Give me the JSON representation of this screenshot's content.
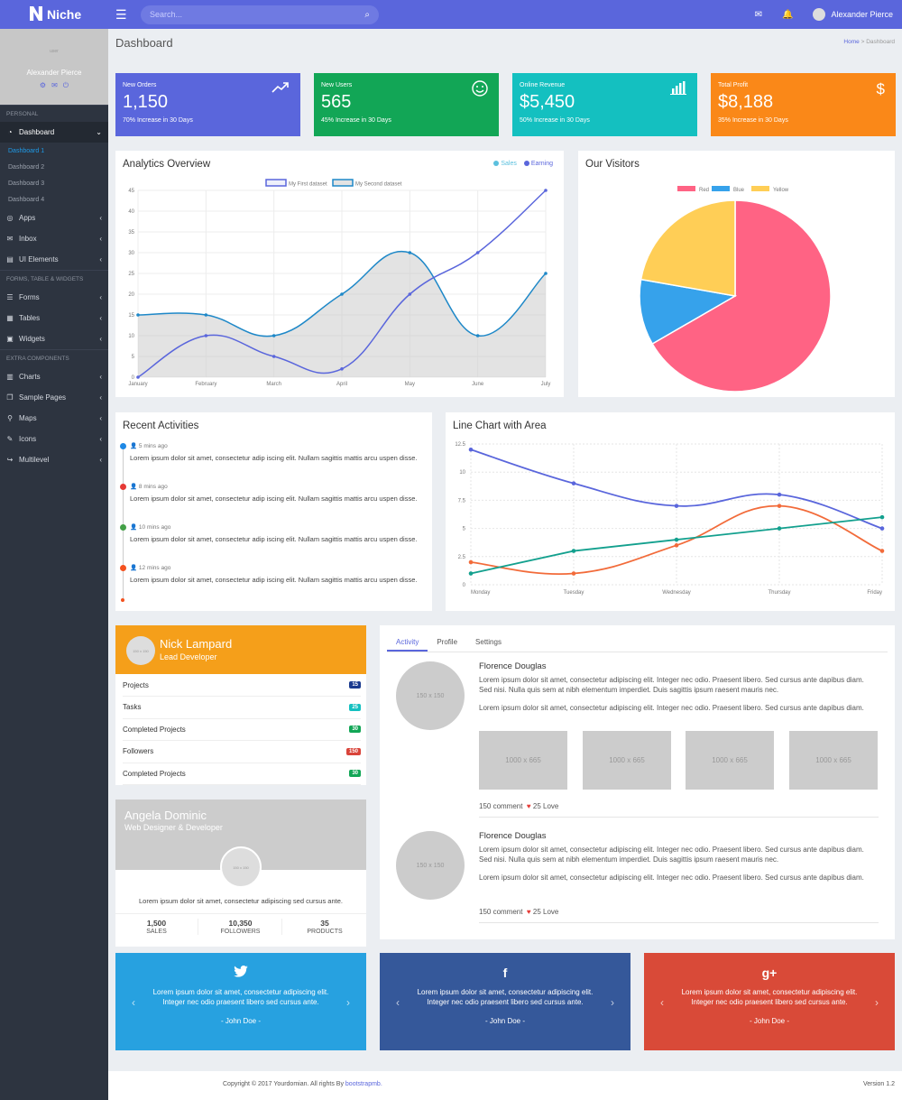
{
  "app": {
    "name": "Niche"
  },
  "search": {
    "placeholder": "Search..."
  },
  "user": {
    "name": "Alexander Pierce"
  },
  "sidebar": {
    "profile_img": "user",
    "profile_name": "Alexander Pierce",
    "sections": [
      "PERSONAL",
      "FORMS, TABLE & WIDGETS",
      "EXTRA COMPONENTS"
    ],
    "dashboard": "Dashboard",
    "subs": [
      "Dashboard 1",
      "Dashboard 2",
      "Dashboard 3",
      "Dashboard 4"
    ],
    "group1": [
      "Apps",
      "Inbox",
      "UI Elements"
    ],
    "group2": [
      "Forms",
      "Tables",
      "Widgets"
    ],
    "group3": [
      "Charts",
      "Sample Pages",
      "Maps",
      "Icons",
      "Multilevel"
    ]
  },
  "page": {
    "title": "Dashboard",
    "bc_home": "Home",
    "bc_sep": " > ",
    "bc_current": "Dashboard"
  },
  "stats": [
    {
      "label": "New Orders",
      "value": "1,150",
      "sub": "70% Increase in 30 Days",
      "color": "#5a66dc",
      "icon": "trending-up-icon"
    },
    {
      "label": "New Users",
      "value": "565",
      "sub": "45% Increase in 30 Days",
      "color": "#12a656",
      "icon": "smile-icon"
    },
    {
      "label": "Online Revenue",
      "value": "$5,450",
      "sub": "50% Increase in 30 Days",
      "color": "#14c0c0",
      "icon": "bar-chart-icon"
    },
    {
      "label": "Total Profit",
      "value": "$8,188",
      "sub": "35% Increase in 30 Days",
      "color": "#fa8818",
      "icon": "dollar-icon"
    }
  ],
  "analytics": {
    "title": "Analytics Overview",
    "legend_right": [
      {
        "label": "Sales",
        "color": "#5bc0de"
      },
      {
        "label": "Earning",
        "color": "#5a66dc"
      }
    ],
    "dataset_legend": [
      "My First dataset",
      "My Second dataset"
    ]
  },
  "visitors": {
    "title": "Our Visitors"
  },
  "activities": {
    "title": "Recent Activities",
    "items": [
      {
        "time": "5 mins ago",
        "text": "Lorem ipsum dolor sit amet, consectetur adip iscing elit. Nullam sagittis mattis arcu uspen disse.",
        "color": "#1e88e5"
      },
      {
        "time": "8 mins ago",
        "text": "Lorem ipsum dolor sit amet, consectetur adip iscing elit. Nullam sagittis mattis arcu uspen disse.",
        "color": "#e53935"
      },
      {
        "time": "10 mins ago",
        "text": "Lorem ipsum dolor sit amet, consectetur adip iscing elit. Nullam sagittis mattis arcu uspen disse.",
        "color": "#43a047"
      },
      {
        "time": "12 mins ago",
        "text": "Lorem ipsum dolor sit amet, consectetur adip iscing elit. Nullam sagittis mattis arcu uspen disse.",
        "color": "#f4511e"
      }
    ]
  },
  "linearea": {
    "title": "Line Chart with Area"
  },
  "nick": {
    "img": "150 x 150",
    "name": "Nick Lampard",
    "role": "Lead Developer",
    "rows": [
      {
        "label": "Projects",
        "badge": "15",
        "color": "#1a3a8f"
      },
      {
        "label": "Tasks",
        "badge": "25",
        "color": "#14c0c0"
      },
      {
        "label": "Completed Projects",
        "badge": "30",
        "color": "#12a656"
      },
      {
        "label": "Followers",
        "badge": "150",
        "color": "#d9443a"
      },
      {
        "label": "Completed Projects",
        "badge": "30",
        "color": "#12a656"
      }
    ]
  },
  "angela": {
    "img": "150 x 150",
    "name": "Angela Dominic",
    "role": "Web Designer & Developer",
    "text": "Lorem ipsum dolor sit amet, consectetur adipiscing sed cursus ante.",
    "stats": [
      {
        "v": "1,500",
        "l": "SALES"
      },
      {
        "v": "10,350",
        "l": "FOLLOWERS"
      },
      {
        "v": "35",
        "l": "PRODUCTS"
      }
    ]
  },
  "feed": {
    "tabs": [
      "Activity",
      "Profile",
      "Settings"
    ],
    "avatar": "150 x 150",
    "thumb": "1000 x 665",
    "posts": [
      {
        "name": "Florence Douglas",
        "p1": "Lorem ipsum dolor sit amet, consectetur adipiscing elit. Integer nec odio. Praesent libero. Sed cursus ante dapibus diam. Sed nisi. Nulla quis sem at nibh elementum imperdiet. Duis sagittis ipsum raesent mauris nec.",
        "p2": "Lorem ipsum dolor sit amet, consectetur adipiscing elit. Integer nec odio. Praesent libero. Sed cursus ante dapibus diam.",
        "comments": "150 comment",
        "love": "25 Love"
      },
      {
        "name": "Florence Douglas",
        "p1": "Lorem ipsum dolor sit amet, consectetur adipiscing elit. Integer nec odio. Praesent libero. Sed cursus ante dapibus diam. Sed nisi. Nulla quis sem at nibh elementum imperdiet. Duis sagittis ipsum raesent mauris nec.",
        "p2": "Lorem ipsum dolor sit amet, consectetur adipiscing elit. Integer nec odio. Praesent libero. Sed cursus ante dapibus diam.",
        "comments": "150 comment",
        "love": "25 Love"
      }
    ]
  },
  "social": [
    {
      "icon": "twitter-icon",
      "glyph": "🐦",
      "color": "#27a1e0",
      "text": "Lorem ipsum dolor sit amet, consectetur adipiscing elit. Integer nec odio praesent libero sed cursus ante.",
      "author": "- John Doe -"
    },
    {
      "icon": "facebook-icon",
      "glyph": "f",
      "color": "#35589a",
      "text": "Lorem ipsum dolor sit amet, consectetur adipiscing elit. Integer nec odio praesent libero sed cursus ante.",
      "author": "- John Doe -"
    },
    {
      "icon": "google-plus-icon",
      "glyph": "g+",
      "color": "#d94a38",
      "text": "Lorem ipsum dolor sit amet, consectetur adipiscing elit. Integer nec odio praesent libero sed cursus ante.",
      "author": "- John Doe -"
    }
  ],
  "footer": {
    "copy": "Copyright © 2017 Yourdomian. All rights By ",
    "link": "bootstrapmb.",
    "version": "Version 1.2"
  },
  "chart_data": [
    {
      "type": "line",
      "categories": [
        "January",
        "February",
        "March",
        "April",
        "May",
        "June",
        "July"
      ],
      "ylim": [
        0,
        45
      ],
      "yticks": [
        0,
        5,
        10,
        15,
        20,
        25,
        30,
        35,
        40,
        45
      ],
      "series": [
        {
          "name": "My First dataset",
          "values": [
            0,
            10,
            5,
            2,
            20,
            30,
            45
          ],
          "color": "#5a66dc"
        },
        {
          "name": "My Second dataset",
          "values": [
            15,
            15,
            10,
            20,
            30,
            10,
            25
          ],
          "color": "#1e88c8",
          "fill": true
        }
      ]
    },
    {
      "type": "pie",
      "categories": [
        "Red",
        "Blue",
        "Yellow"
      ],
      "values": [
        300,
        50,
        100
      ],
      "colors": [
        "#ff6384",
        "#36a2eb",
        "#ffce56"
      ]
    },
    {
      "type": "line",
      "categories": [
        "Monday",
        "Tuesday",
        "Wednesday",
        "Thursday",
        "Friday"
      ],
      "ylim": [
        0,
        12.5
      ],
      "yticks": [
        0,
        2.5,
        5,
        7.5,
        10,
        12.5
      ],
      "series": [
        {
          "values": [
            12,
            9,
            7,
            8,
            5
          ],
          "color": "#5a66dc"
        },
        {
          "values": [
            2,
            1,
            3.5,
            7,
            3
          ],
          "color": "#f26b3a"
        },
        {
          "values": [
            1,
            3,
            4,
            5,
            6
          ],
          "color": "#13a08e"
        }
      ]
    }
  ]
}
